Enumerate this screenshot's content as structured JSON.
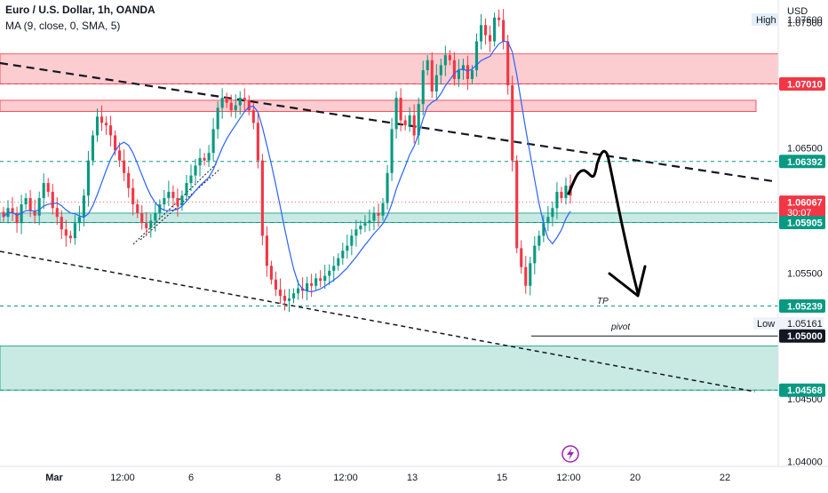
{
  "header": {
    "symbol": "Euro / U.S. Dollar, 1h, OANDA",
    "indicator": "MA (9, close, 0, SMA, 5)"
  },
  "price_axis": {
    "currency": "USD",
    "high_label": "High",
    "high_value": "1.07600",
    "low_label": "Low",
    "low_value": "1.05161",
    "ticks": [
      "1.07500",
      "1.06500",
      "1.05500",
      "1.04500",
      "1.04000"
    ]
  },
  "price_tags": [
    {
      "label": "1.07010",
      "value": 1.0701,
      "style": "red"
    },
    {
      "label": "1.06392",
      "value": 1.06392,
      "style": "green"
    },
    {
      "label": "1.06067",
      "value": 1.06067,
      "style": "last"
    },
    {
      "label": "30:07",
      "value": 1.05985,
      "style": "last-timer"
    },
    {
      "label": "1.05905",
      "value": 1.05905,
      "style": "green"
    },
    {
      "label": "1.05239",
      "value": 1.05239,
      "style": "green"
    },
    {
      "label": "1.05000",
      "value": 1.05,
      "style": "black"
    },
    {
      "label": "1.04568",
      "value": 1.04568,
      "style": "green"
    }
  ],
  "time_axis": [
    "Mar",
    "12:00",
    "6",
    "12:00",
    "8",
    "12:00",
    "13",
    "12:00",
    "15",
    "12:00",
    "20",
    "22"
  ],
  "annotations": {
    "tp": "TP",
    "pivot": "pivot"
  },
  "colors": {
    "up": "#089981",
    "down": "#f23645",
    "ma": "#2962ff",
    "resistance_zone": "rgba(242,54,69,0.25)",
    "support_zone": "rgba(8,153,129,0.22)",
    "last_price": "#f23645",
    "level_green": "#089981"
  },
  "chart_data": {
    "type": "candlestick",
    "title": "Euro / U.S. Dollar, 1h, OANDA",
    "ylim": [
      1.0396,
      1.0768
    ],
    "price_levels": [
      1.0701,
      1.06392,
      1.05905,
      1.05239,
      1.05,
      1.04568
    ],
    "last_price": 1.06067,
    "high": 1.076,
    "low": 1.05161,
    "zones": [
      {
        "kind": "resistance",
        "from": 1.0701,
        "to": 1.0725
      },
      {
        "kind": "resistance",
        "from": 1.0679,
        "to": 1.0688
      },
      {
        "kind": "support",
        "from": 1.05905,
        "to": 1.0598
      },
      {
        "kind": "support",
        "from": 1.04568,
        "to": 1.0492
      }
    ],
    "closes": [
      1.0595,
      1.0602,
      1.0598,
      1.059,
      1.0605,
      1.061,
      1.06,
      1.0596,
      1.061,
      1.0622,
      1.0615,
      1.0602,
      1.0595,
      1.0585,
      1.058,
      1.0578,
      1.059,
      1.0595,
      1.0612,
      1.064,
      1.066,
      1.0675,
      1.067,
      1.0668,
      1.066,
      1.0648,
      1.064,
      1.063,
      1.0618,
      1.0605,
      1.0598,
      1.059,
      1.0586,
      1.0592,
      1.0598,
      1.0605,
      1.061,
      1.0615,
      1.061,
      1.0604,
      1.0612,
      1.0622,
      1.0628,
      1.0636,
      1.0642,
      1.064,
      1.0646,
      1.0665,
      1.0682,
      1.069,
      1.0686,
      1.068,
      1.0684,
      1.069,
      1.0688,
      1.068,
      1.067,
      1.064,
      1.058,
      1.0556,
      1.0545,
      1.0537,
      1.0532,
      1.0528,
      1.053,
      1.0534,
      1.0538,
      1.0536,
      1.0542,
      1.054,
      1.0546,
      1.0544,
      1.0548,
      1.0552,
      1.0556,
      1.0562,
      1.0568,
      1.0572,
      1.058,
      1.0585,
      1.0588,
      1.059,
      1.0592,
      1.0598,
      1.0596,
      1.0606,
      1.063,
      1.0665,
      1.069,
      1.0672,
      1.0668,
      1.0676,
      1.066,
      1.0685,
      1.0712,
      1.072,
      1.0695,
      1.0708,
      1.0716,
      1.0724,
      1.072,
      1.0705,
      1.0712,
      1.0716,
      1.0705,
      1.0712,
      1.0735,
      1.0748,
      1.074,
      1.0735,
      1.0754,
      1.0752,
      1.0735,
      1.07,
      1.064,
      1.057,
      1.0555,
      1.054,
      1.0558,
      1.0572,
      1.058,
      1.059,
      1.0595,
      1.0602,
      1.0615,
      1.061,
      1.062,
      1.0612
    ]
  }
}
